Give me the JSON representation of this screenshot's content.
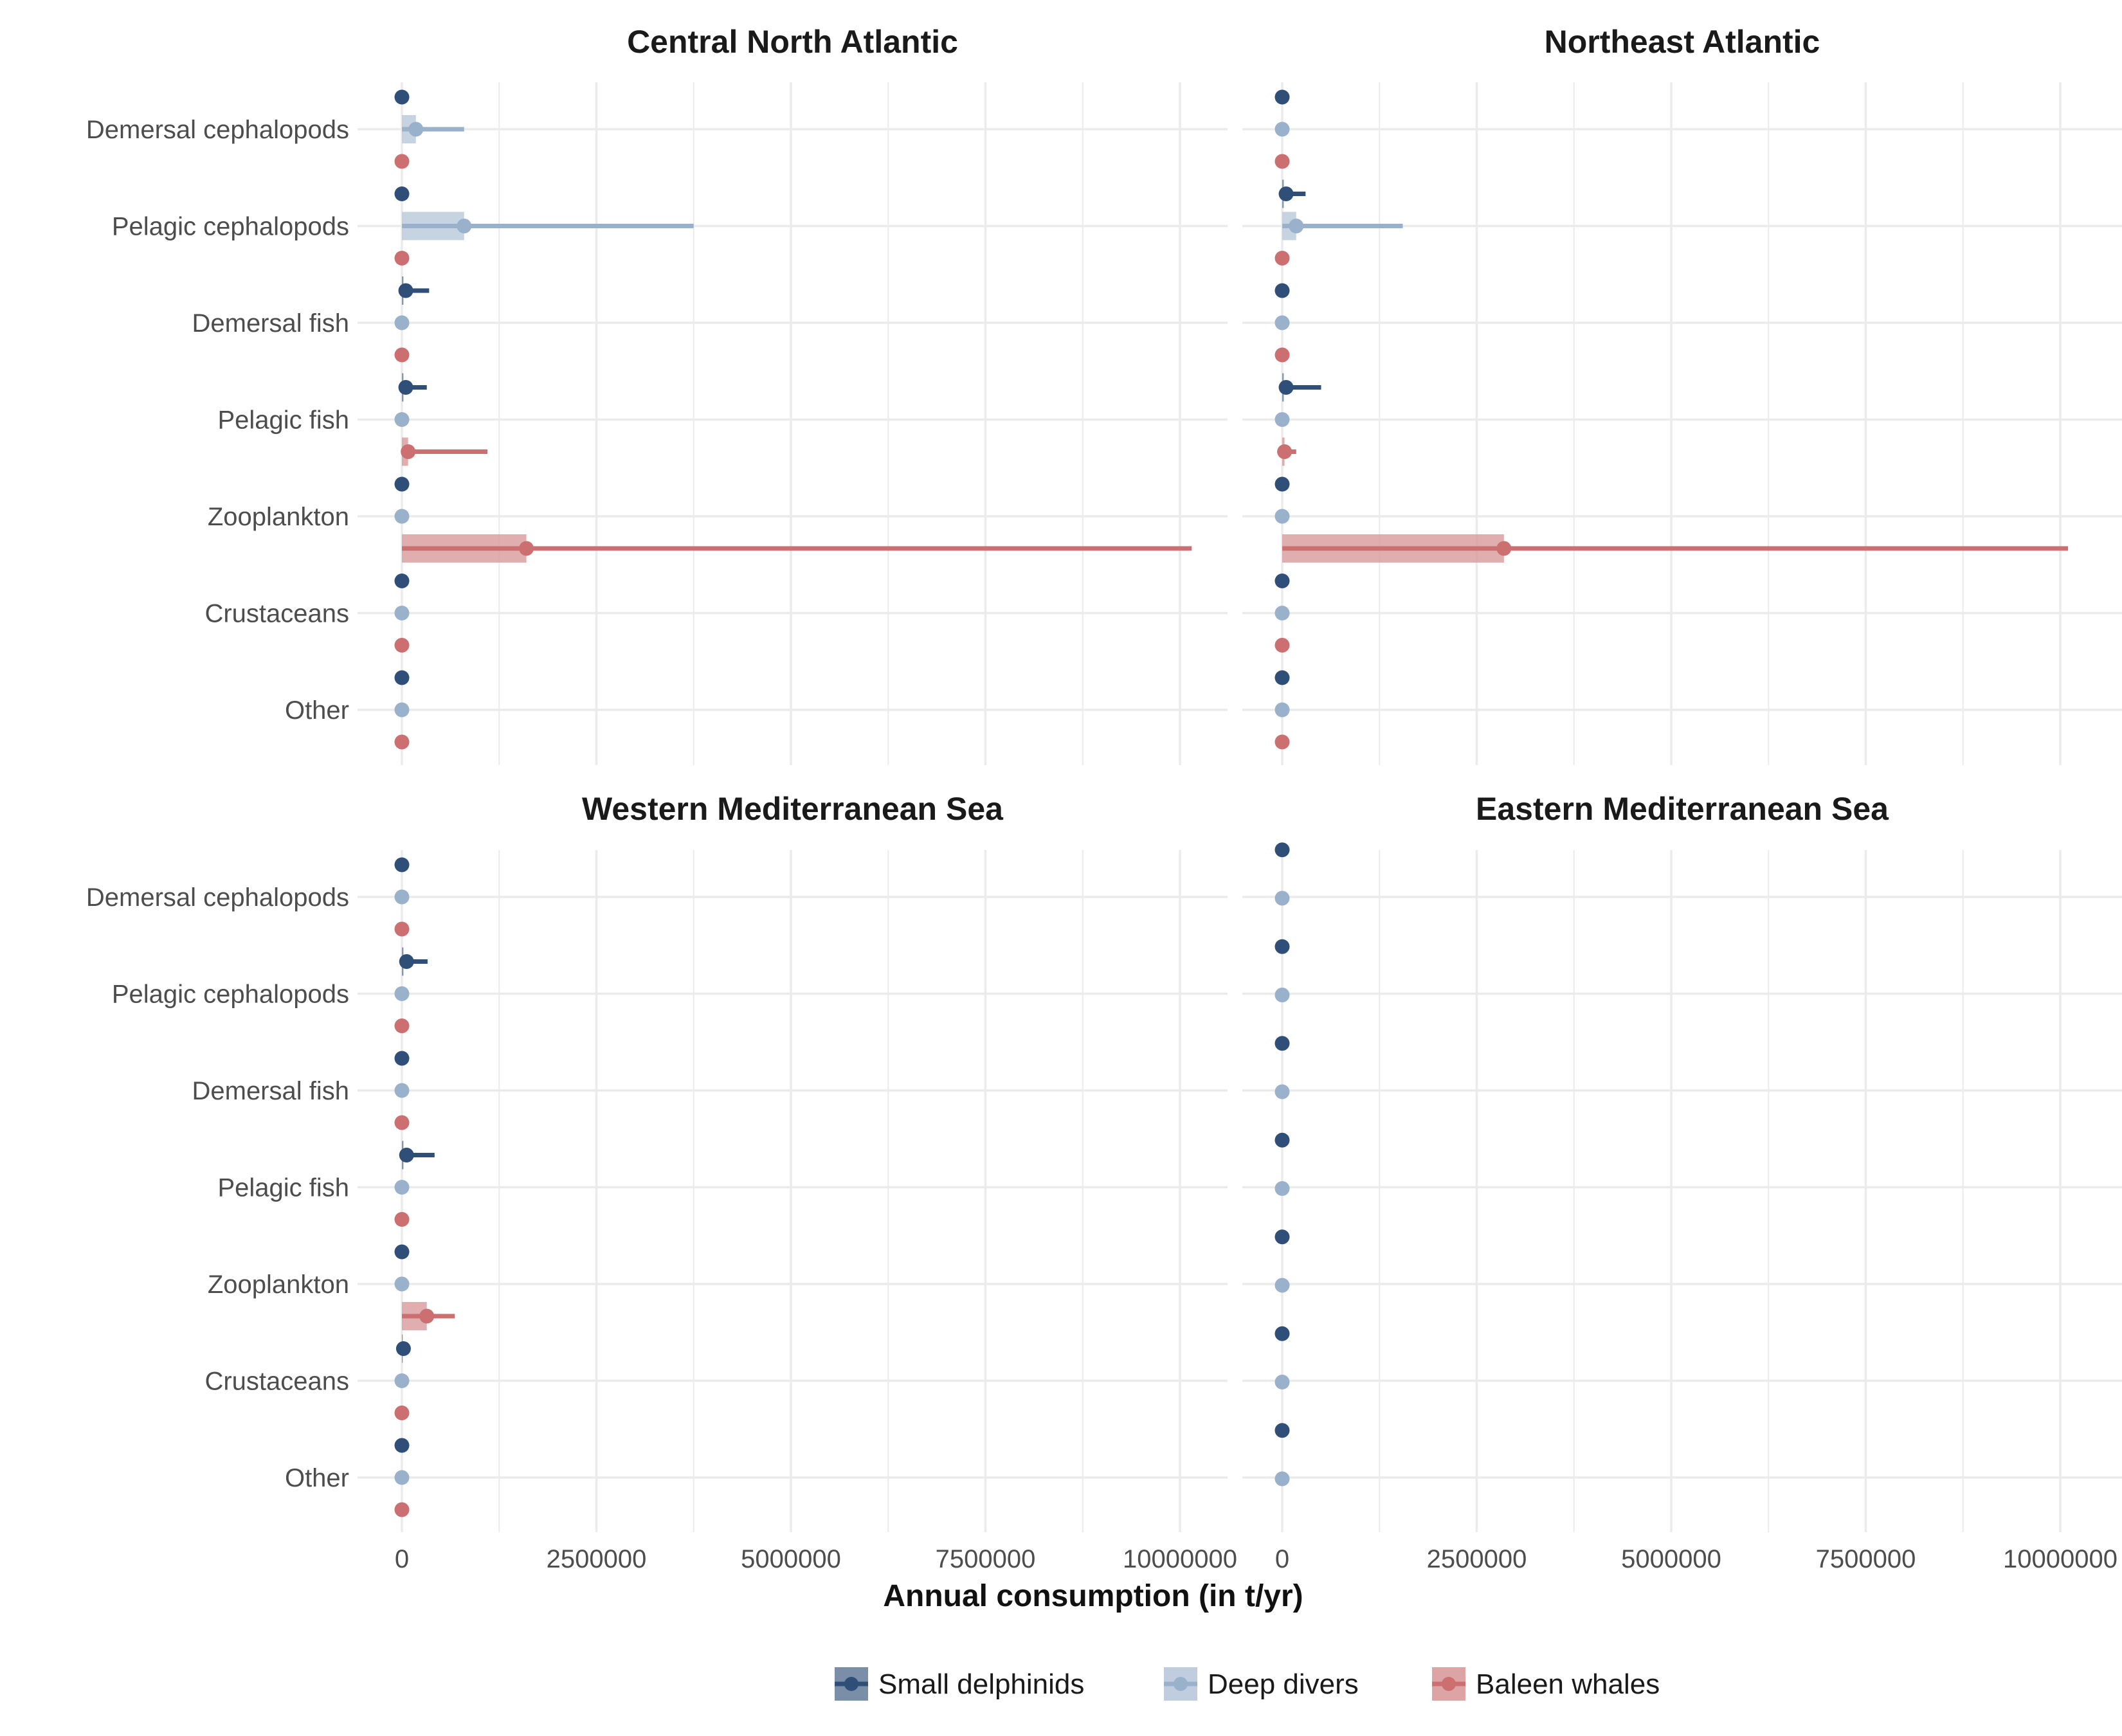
{
  "chart_data": {
    "type": "bar",
    "xlabel": "Annual consumption (in t/yr)",
    "xlim": [
      0,
      10200000
    ],
    "x_ticks": [
      "0",
      "2500000",
      "5000000",
      "7500000",
      "10000000"
    ],
    "x_tick_values": [
      0,
      2500000,
      5000000,
      7500000,
      10000000
    ],
    "categories": [
      "Demersal cephalopods",
      "Pelagic cephalopods",
      "Demersal fish",
      "Pelagic fish",
      "Zooplankton",
      "Crustaceans",
      "Other"
    ],
    "grid": true,
    "legend_position": "bottom",
    "legend": [
      {
        "name": "Small delphinids",
        "color": "#2f4e78",
        "fill": "#6b829f"
      },
      {
        "name": "Deep divers",
        "color": "#9ab1cb",
        "fill": "#b8c8da"
      },
      {
        "name": "Baleen whales",
        "color": "#cc6f70",
        "fill": "#d99a9b"
      }
    ],
    "panels": [
      {
        "title": "Central North Atlantic",
        "series": [
          {
            "name": "Small delphinids",
            "values": [
              0,
              0,
              50000,
              50000,
              0,
              0,
              0
            ],
            "upper": [
              0,
              0,
              350000,
              320000,
              0,
              0,
              0
            ],
            "bar": [
              0,
              0,
              20000,
              20000,
              0,
              0,
              0
            ]
          },
          {
            "name": "Deep divers",
            "values": [
              180000,
              800000,
              0,
              0,
              0,
              0,
              0
            ],
            "upper": [
              800000,
              3750000,
              0,
              0,
              0,
              0,
              0
            ],
            "bar": [
              180000,
              800000,
              0,
              0,
              0,
              0,
              0
            ]
          },
          {
            "name": "Baleen whales",
            "values": [
              0,
              0,
              0,
              80000,
              1600000,
              0,
              0
            ],
            "upper": [
              0,
              0,
              0,
              1100000,
              10150000,
              0,
              0
            ],
            "bar": [
              0,
              0,
              0,
              80000,
              1600000,
              0,
              0
            ]
          }
        ]
      },
      {
        "title": "Northeast Atlantic",
        "series": [
          {
            "name": "Small delphinids",
            "values": [
              0,
              50000,
              0,
              50000,
              0,
              0,
              0
            ],
            "upper": [
              0,
              300000,
              0,
              500000,
              0,
              0,
              0
            ],
            "bar": [
              0,
              20000,
              0,
              20000,
              0,
              0,
              0
            ]
          },
          {
            "name": "Deep divers",
            "values": [
              0,
              180000,
              0,
              0,
              0,
              0,
              0
            ],
            "upper": [
              0,
              1550000,
              0,
              0,
              0,
              0,
              0
            ],
            "bar": [
              0,
              180000,
              0,
              0,
              0,
              0,
              0
            ]
          },
          {
            "name": "Baleen whales",
            "values": [
              0,
              0,
              0,
              30000,
              2850000,
              0,
              0
            ],
            "upper": [
              0,
              0,
              0,
              180000,
              10100000,
              0,
              0
            ],
            "bar": [
              0,
              0,
              0,
              30000,
              2850000,
              0,
              0
            ]
          }
        ]
      },
      {
        "title": "Western Mediterranean Sea",
        "series": [
          {
            "name": "Small delphinids",
            "values": [
              0,
              60000,
              0,
              60000,
              0,
              20000,
              0
            ],
            "upper": [
              0,
              330000,
              0,
              420000,
              0,
              20000,
              0
            ],
            "bar": [
              0,
              20000,
              0,
              20000,
              0,
              10000,
              0
            ]
          },
          {
            "name": "Deep divers",
            "values": [
              0,
              0,
              0,
              0,
              0,
              0,
              0
            ],
            "upper": [
              0,
              0,
              0,
              0,
              0,
              0,
              0
            ],
            "bar": [
              0,
              0,
              0,
              0,
              0,
              0,
              0
            ]
          },
          {
            "name": "Baleen whales",
            "values": [
              0,
              0,
              0,
              0,
              320000,
              0,
              0
            ],
            "upper": [
              0,
              0,
              0,
              0,
              680000,
              0,
              0
            ],
            "bar": [
              0,
              0,
              0,
              0,
              320000,
              0,
              0
            ]
          }
        ]
      },
      {
        "title": "Eastern Mediterranean Sea",
        "series": [
          {
            "name": "Small delphinids",
            "values": [
              0,
              0,
              0,
              0,
              0,
              0,
              0
            ],
            "upper": [
              0,
              0,
              0,
              0,
              0,
              0,
              0
            ],
            "bar": [
              0,
              0,
              0,
              0,
              0,
              0,
              0
            ]
          },
          {
            "name": "Deep divers",
            "values": [
              0,
              0,
              0,
              0,
              0,
              0,
              0
            ],
            "upper": [
              0,
              0,
              0,
              0,
              0,
              0,
              0
            ],
            "bar": [
              0,
              0,
              0,
              0,
              0,
              0,
              0
            ]
          }
        ]
      }
    ]
  }
}
